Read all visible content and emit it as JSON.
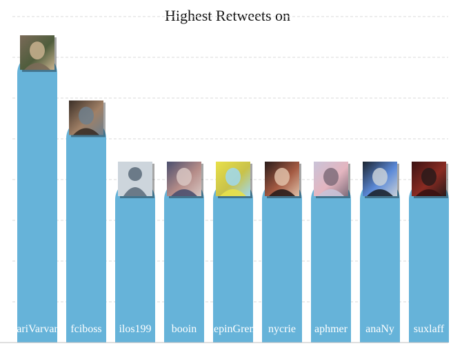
{
  "chart_data": {
    "type": "bar",
    "title": "Highest Retweets on",
    "categories": [
      "ariVarvar",
      "fciboss",
      "ilos199",
      "booin",
      "depinGrem",
      "nycrie",
      "aphmer",
      "anaNy",
      "suxlaff"
    ],
    "values": [
      71,
      55,
      40,
      40,
      40,
      40,
      40,
      40,
      40
    ],
    "ylim": [
      0,
      80
    ],
    "grid": true,
    "bar_color": "#66b3d9",
    "avatars": [
      "photo-avatar-icon",
      "photo-avatar-icon",
      "default-user-avatar-icon",
      "photo-avatar-icon",
      "photo-avatar-icon",
      "photo-avatar-icon",
      "photo-avatar-icon",
      "photo-avatar-icon",
      "photo-avatar-icon"
    ]
  }
}
